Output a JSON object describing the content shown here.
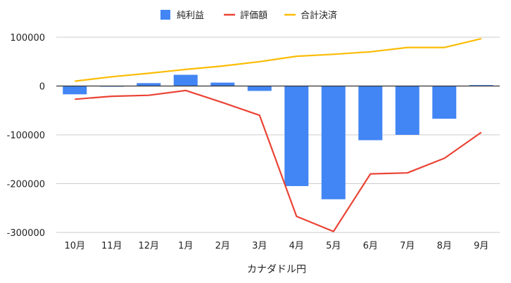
{
  "chart_data": {
    "type": "bar",
    "title": "",
    "xlabel": "カナダドル円",
    "ylabel": "",
    "ylim": [
      -300000,
      100000
    ],
    "yticks": [
      100000,
      0,
      -100000,
      -200000,
      -300000
    ],
    "ytick_labels": [
      "100000",
      "0",
      "-100000",
      "-200000",
      "-300000"
    ],
    "grid": true,
    "legend_position": "top",
    "categories": [
      "10月",
      "11月",
      "12月",
      "1月",
      "2月",
      "3月",
      "4月",
      "5月",
      "6月",
      "7月",
      "8月",
      "9月"
    ],
    "series": [
      {
        "name": "純利益",
        "type": "bar",
        "color": "#4285f4",
        "values": [
          -17000,
          -1000,
          6000,
          23000,
          7000,
          -10000,
          -205000,
          -232000,
          -111000,
          -100000,
          -67000,
          2000
        ]
      },
      {
        "name": "評価額",
        "type": "line",
        "color": "#ea4335",
        "values": [
          -27000,
          -21000,
          -19000,
          -9000,
          -34000,
          -60000,
          -267000,
          -298000,
          -180000,
          -178000,
          -148000,
          -95000
        ]
      },
      {
        "name": "合計決済",
        "type": "line",
        "color": "#fbbc04",
        "values": [
          10000,
          19000,
          26000,
          34000,
          41000,
          50000,
          61000,
          65000,
          70000,
          79000,
          79000,
          97000
        ]
      }
    ]
  }
}
